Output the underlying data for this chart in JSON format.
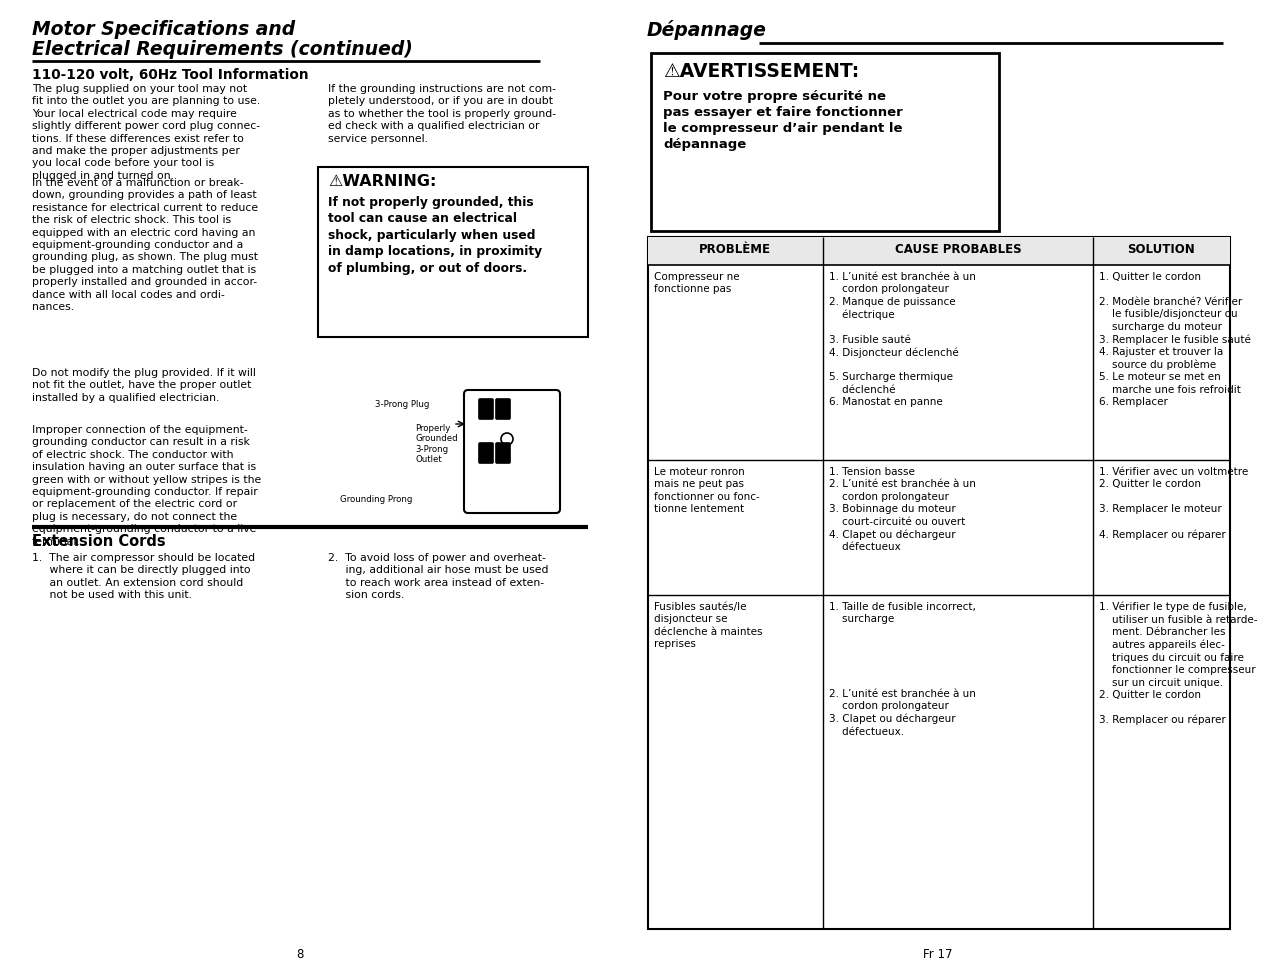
{
  "page_bg": "#ffffff",
  "left_col1_para1": "The plug supplied on your tool may not\nfit into the outlet you are planning to use.\nYour local electrical code may require\nslightly different power cord plug connec-\ntions. If these differences exist refer to\nand make the proper adjustments per\nyou local code before your tool is\nplugged in and turned on.",
  "left_col1_para2": "In the event of a malfunction or break-\ndown, grounding provides a path of least\nresistance for electrical current to reduce\nthe risk of electric shock. This tool is\nequipped with an electric cord having an\nequipment-grounding conductor and a\ngrounding plug, as shown. The plug must\nbe plugged into a matching outlet that is\nproperly installed and grounded in accor-\ndance with all local codes and ordi-\nnances.",
  "left_col1_para3": "Do not modify the plug provided. If it will\nnot fit the outlet, have the proper outlet\ninstalled by a qualified electrician.",
  "left_col1_para4": "Improper connection of the equipment-\ngrounding conductor can result in a risk\nof electric shock. The conductor with\ninsulation having an outer surface that is\ngreen with or without yellow stripes is the\nequipment-grounding conductor. If repair\nor replacement of the electric cord or\nplug is necessary, do not connect the\nequipment-grounding conductor to a live\nterminal.",
  "left_col2_para1": "If the grounding instructions are not com-\npletely understood, or if you are in doubt\nas to whether the tool is properly ground-\ned check with a qualified electrician or\nservice personnel.",
  "warning_title": "⚠WARNING:",
  "warning_body": "If not properly grounded, this\ntool can cause an electrical\nshock, particularly when used\nin damp locations, in proximity\nof plumbing, or out of doors.",
  "extension_title": "Extension Cords",
  "ext_item1": "1.  The air compressor should be located\n     where it can be directly plugged into\n     an outlet. An extension cord should\n     not be used with this unit.",
  "ext_item2": "2.  To avoid loss of power and overheat-\n     ing, additional air hose must be used\n     to reach work area instead of exten-\n     sion cords.",
  "page_num_left": "8",
  "page_num_right": "Fr 17",
  "right_title": "Dépannage",
  "avert_title": "⚠AVERTISSEMENT:",
  "avert_body": "Pour votre propre sécurité ne\npas essayer et faire fonctionner\nle compresseur d’air pendant le\ndépannage",
  "table_headers": [
    "PROBLÈME",
    "CAUSE PROBABLES",
    "SOLUTION"
  ],
  "table_row0_prob": "Compresseur ne\nfonctionne pas",
  "table_row0_cause": "1. L’unité est branchée à un\n    cordon prolongateur\n2. Manque de puissance\n    électrique\n\n3. Fusible sauté\n4. Disjoncteur déclenché\n\n5. Surcharge thermique\n    déclenché\n6. Manostat en panne",
  "table_row0_sol": "1. Quitter le cordon\n\n2. Modèle branché? Vérifier\n    le fusible/disjoncteur ou\n    surcharge du moteur\n3. Remplacer le fusible sauté\n4. Rajuster et trouver la\n    source du problème\n5. Le moteur se met en\n    marche une fois refroidit\n6. Remplacer",
  "table_row1_prob": "Le moteur ronron\nmais ne peut pas\nfonctionner ou fonc-\ntionne lentement",
  "table_row1_cause": "1. Tension basse\n2. L’unité est branchée à un\n    cordon prolongateur\n3. Bobinnage du moteur\n    court-circuité ou ouvert\n4. Clapet ou déchargeur\n    défectueux",
  "table_row1_sol": "1. Vérifier avec un voltmètre\n2. Quitter le cordon\n\n3. Remplacer le moteur\n\n4. Remplacer ou réparer",
  "table_row2_prob": "Fusibles sautés/le\ndisjoncteur se\ndéclenche à maintes\nreprises",
  "table_row2_cause": "1. Taille de fusible incorrect,\n    surcharge\n\n\n\n\n\n2. L’unité est branchée à un\n    cordon prolongateur\n3. Clapet ou déchargeur\n    défectueux.",
  "table_row2_sol": "1. Vérifier le type de fusible,\n    utiliser un fusible à retarde-\n    ment. Débrancher les\n    autres appareils élec-\n    triques du circuit ou faire\n    fonctionner le compresseur\n    sur un circuit unique.\n2. Quitter le cordon\n\n3. Remplacer ou réparer"
}
